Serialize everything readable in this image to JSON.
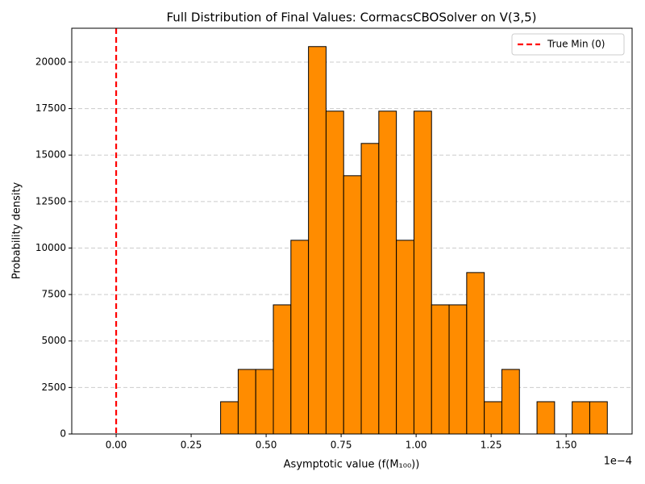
{
  "chart_data": {
    "type": "histogram",
    "title": "Full Distribution of Final Values: CormacsCBOSolver on V(3,5)",
    "x_label": "Asymptotic value (f(M₁₀₀))",
    "y_label": "Probability density",
    "x_offset_text": "1e−4",
    "bins": [
      -0.062,
      -0.0034,
      0.0552,
      0.1138,
      0.1724,
      0.231,
      0.2896,
      0.3482,
      0.4068,
      0.4654,
      0.524,
      0.5826,
      0.6412,
      0.6998,
      0.7584,
      0.817,
      0.8756,
      0.9342,
      0.9928,
      1.0514,
      1.11,
      1.1686,
      1.2272,
      1.2858,
      1.3444,
      1.403,
      1.4616,
      1.5202,
      1.5788,
      1.6374
    ],
    "values": [
      0,
      0,
      0,
      0,
      0,
      0,
      0,
      1736,
      3472,
      3472,
      6944,
      10417,
      20833,
      17361,
      13889,
      15625,
      17361,
      10417,
      17361,
      6944,
      6944,
      8681,
      1736,
      3472,
      0,
      1736,
      0,
      1736,
      1736
    ],
    "color": "#ff8c00",
    "edgecolor": "#000000",
    "xlim": [
      -0.148,
      1.72
    ],
    "ylim": [
      0,
      21820
    ],
    "xticks": [
      {
        "value": 0,
        "label": "0.00"
      },
      0.25,
      {
        "value": 0.5,
        "label": "0.50"
      },
      0.75,
      {
        "value": 1,
        "label": "1.00"
      },
      1.25,
      {
        "value": 1.5,
        "label": "1.50"
      }
    ],
    "yticks": [
      0,
      2500,
      5000,
      7500,
      10000,
      12500,
      15000,
      17500,
      20000
    ],
    "grid": "y",
    "legend": "upper right",
    "reference_lines": [
      {
        "name": "True Min (0)",
        "x": 0,
        "color": "#ff0000"
      }
    ]
  }
}
